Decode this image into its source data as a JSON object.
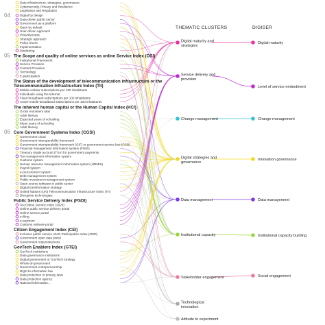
{
  "colors": {
    "digital_maturity": "#ec2fa4",
    "service_delivery": "#c026d3",
    "change_management": "#35c0d6",
    "strategies_governance": "#f0d81c",
    "data_management": "#7c3aed",
    "institutional_capacity": "#9bd63c",
    "stakeholder_engagement": "#f07a9e",
    "technological_innovation": "#a7a7a7",
    "attitude_experiment": "#bdbdbd",
    "line_grey": "#c9c9c9"
  },
  "column_headers": {
    "thematic_clusters": "THEMATIC CLUSTERS",
    "digiser": "DIGISER"
  },
  "groups": [
    {
      "number": "",
      "heading": "",
      "items": [
        {
          "label": "Data infrastructure, strategies, governance",
          "cluster": 3
        },
        {
          "label": "Cybersecurity, Privacy and Resilience",
          "cluster": 3
        },
        {
          "label": "Legislation and Regulation",
          "cluster": 3
        }
      ]
    },
    {
      "number": "04",
      "heading": "",
      "items": [
        {
          "label": "Digital by design",
          "cluster": 0
        },
        {
          "label": "Data-driven public sector",
          "cluster": 4
        },
        {
          "label": "Government as a platform",
          "cluster": 1
        },
        {
          "label": "Open by default",
          "cluster": 3
        },
        {
          "label": "User-driven approach",
          "cluster": 1
        },
        {
          "label": "Proactiveness",
          "cluster": 6
        },
        {
          "label": "Strategic approach",
          "cluster": 3
        },
        {
          "label": "Policy levers",
          "cluster": 3
        },
        {
          "label": "Implementation",
          "cluster": 5
        },
        {
          "label": "Monitoring",
          "cluster": 0
        }
      ]
    },
    {
      "number": "05",
      "heading": "The Scope and quality of online services as online Service Index (OSI)",
      "items": [
        {
          "label": "Institutional Framework",
          "cluster": 5
        },
        {
          "label": "Service Provision",
          "cluster": 1
        },
        {
          "label": "Content Provision",
          "cluster": 1
        },
        {
          "label": "Technology",
          "cluster": 7
        },
        {
          "label": "E-participation",
          "cluster": 6
        }
      ]
    },
    {
      "number": "",
      "heading": "The Status of the development of telecommunication infrastructure or the Telecommunication Infrastructure Index (TII)",
      "items": [
        {
          "label": "Mobile-cellular subscriptions per 100 inhabitants",
          "cluster": 0
        },
        {
          "label": "Individuals using the Internet",
          "cluster": 0
        },
        {
          "label": "Fixed broadband subscriptions per 100 inhabitants",
          "cluster": 0
        },
        {
          "label": "Active mobile-broadband subscriptions per 100 inhabitants",
          "cluster": 0
        }
      ]
    },
    {
      "number": "",
      "heading": "The Inherent human capital or the Human Capital Index (HCI)",
      "items": [
        {
          "label": "Gross enrolment ratio",
          "cluster": 5
        },
        {
          "label": "Adult literacy",
          "cluster": 5
        },
        {
          "label": "Expected years of schooling",
          "cluster": 5
        },
        {
          "label": "Mean years of schooling",
          "cluster": 5
        },
        {
          "label": "Adult literacy",
          "cluster": 5
        }
      ]
    },
    {
      "number": "06",
      "heading": "Core Government Systems Index (CGSI)",
      "items": [
        {
          "label": "Government cloud",
          "cluster": 3
        },
        {
          "label": "Government interoperability framework",
          "cluster": 3
        },
        {
          "label": "Government interoperability framework (GIF) or government service bus (GSB)",
          "cluster": 3
        },
        {
          "label": "Financial management information system (FMIS)",
          "cluster": 4
        },
        {
          "label": "Treasury single account (TSA) for government payments",
          "cluster": 3
        },
        {
          "label": "Tax management information system",
          "cluster": 4
        },
        {
          "label": "Customs system",
          "cluster": 3
        },
        {
          "label": "Human resource management information system (HRMIS)",
          "cluster": 5
        },
        {
          "label": "Payroll system",
          "cluster": 3
        },
        {
          "label": "e-procurement system",
          "cluster": 3
        },
        {
          "label": "Debt management system",
          "cluster": 3
        },
        {
          "label": "Public investment management system",
          "cluster": 3
        },
        {
          "label": "Open-source software in public sector",
          "cluster": 7
        },
        {
          "label": "Digital transformation strategy",
          "cluster": 3
        },
        {
          "label": "United Nations (UN) Telecommunication Infrastructure Index (TII)",
          "cluster": 0
        },
        {
          "label": "Disruptive technologies",
          "cluster": 7
        }
      ]
    },
    {
      "number": "",
      "heading": "Public Service Delivery Index (PSDI)",
      "items": [
        {
          "label": "UN Online Service Index (2020)",
          "cluster": 1
        },
        {
          "label": "Online public service delivery portal",
          "cluster": 1
        },
        {
          "label": "Online service portal",
          "cluster": 1
        },
        {
          "label": "e-filing",
          "cluster": 1
        },
        {
          "label": "e-payment",
          "cluster": 1
        },
        {
          "label": "Customs online/e-portal",
          "cluster": 1
        }
      ]
    },
    {
      "number": "",
      "heading": "Citizen Engagement Index (CEI)",
      "items": [
        {
          "label": "Inclusive public service UN E-Participation Index (2020)",
          "cluster": 6
        },
        {
          "label": "Government open data portal",
          "cluster": 4
        },
        {
          "label": "Government responsiveness",
          "cluster": 6
        }
      ]
    },
    {
      "number": "",
      "heading": "GovTech Enablers Index (GTEI)",
      "items": [
        {
          "label": "GovTech institutions",
          "cluster": 5
        },
        {
          "label": "Data governance institutions",
          "cluster": 3
        },
        {
          "label": "Digital government or GovTech strategy",
          "cluster": 3
        },
        {
          "label": "Whole-of-government",
          "cluster": 3
        },
        {
          "label": "Government entrepreneurship",
          "cluster": 8
        },
        {
          "label": "Right to information law",
          "cluster": 3
        },
        {
          "label": "Data protection or privacy laws",
          "cluster": 3
        },
        {
          "label": "Data protection agency",
          "cluster": 4
        },
        {
          "label": "National information...",
          "cluster": 4
        }
      ]
    }
  ],
  "clusters": [
    {
      "label": "Digital maturity and strategies",
      "color": "#ec2fa4"
    },
    {
      "label": "Service delivery and provision",
      "color": "#c026d3"
    },
    {
      "label": "Change management",
      "color": "#35c0d6"
    },
    {
      "label": "Digital strategies and governance",
      "color": "#f0d81c"
    },
    {
      "label": "Data management",
      "color": "#7c3aed"
    },
    {
      "label": "Institutional capacity",
      "color": "#9bd63c"
    },
    {
      "label": "Stakeholder engagement",
      "color": "#f07a9e"
    },
    {
      "label": "Technological innovation",
      "color": "#a7a7a7"
    },
    {
      "label": "Attitude to experiment",
      "color": "#bdbdbd"
    }
  ],
  "digiser": [
    {
      "label": "Digital maturity",
      "cluster": 0,
      "color": "#ec2fa4"
    },
    {
      "label": "Level of service embedment",
      "cluster": 1,
      "color": "#c026d3"
    },
    {
      "label": "Change management",
      "cluster": 2,
      "color": "#35c0d6"
    },
    {
      "label": "Innovation governance",
      "cluster": 3,
      "color": "#f0d81c"
    },
    {
      "label": "Data management",
      "cluster": 4,
      "color": "#7c3aed"
    },
    {
      "label": "Institutional capacity building",
      "cluster": 5,
      "color": "#9bd63c"
    },
    {
      "label": "Social engagement",
      "cluster": 6,
      "color": "#f07a9e"
    }
  ]
}
